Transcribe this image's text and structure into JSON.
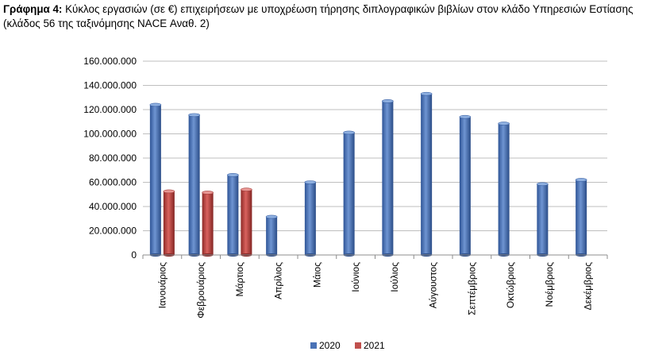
{
  "caption": {
    "prefix": "Γράφημα 4:",
    "text": " Κύκλος εργασιών (σε €) επιχειρήσεων με υποχρέωση τήρησης διπλογραφικών βιβλίων στον κλάδο Υπηρεσιών Εστίασης (κλάδος 56 της ταξινόμησης NACE Αναθ. 2)"
  },
  "chart_data": {
    "type": "bar",
    "title": "",
    "xlabel": "",
    "ylabel": "",
    "categories": [
      "Ιανουάριος",
      "Φεβρουάριος",
      "Μάρτιος",
      "Απρίλιος",
      "Μάιος",
      "Ιούνιος",
      "Ιούλιος",
      "Αύγουστος",
      "Σεπτέμβριος",
      "Οκτώβριος",
      "Νοέμβριος",
      "Δεκέμβριος"
    ],
    "series": [
      {
        "name": "2020",
        "color": "#4a72b6",
        "values": [
          124000000,
          115500000,
          66000000,
          31500000,
          60000000,
          101000000,
          127000000,
          133000000,
          114000000,
          108500000,
          58500000,
          62000000
        ]
      },
      {
        "name": "2021",
        "color": "#c0504d",
        "values": [
          52500000,
          51500000,
          54000000,
          null,
          null,
          null,
          null,
          null,
          null,
          null,
          null,
          null
        ]
      }
    ],
    "ylim": [
      0,
      160000000
    ],
    "yticks": [
      0,
      20000000,
      40000000,
      60000000,
      80000000,
      100000000,
      120000000,
      140000000,
      160000000
    ],
    "ytick_labels": [
      "0",
      "20.000.000",
      "40.000.000",
      "60.000.000",
      "80.000.000",
      "100.000.000",
      "120.000.000",
      "140.000.000",
      "160.000.000"
    ],
    "grid": true,
    "legend": "bottom",
    "style": "3d-cylinder"
  }
}
